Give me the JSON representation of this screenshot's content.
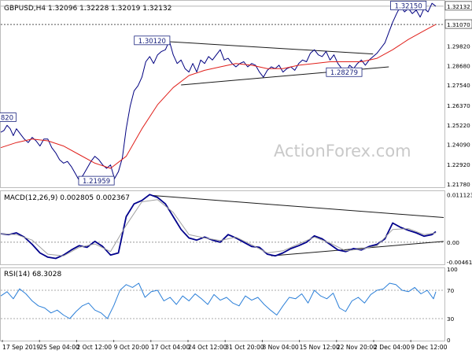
{
  "panels": {
    "price": {
      "header": "GBPUSD,H4  1.32096 1.32228 1.32019 1.32132",
      "last_price": "1.32132",
      "ref_level": "1.31070",
      "watermark": "ActionForex.com"
    },
    "macd": {
      "header": "MACD(12,26,9) 0.002805 0.002367"
    },
    "rsi": {
      "header": "RSI(14) 68.3028"
    }
  },
  "x_axis_labels": [
    "17 Sep 2019",
    "25 Sep 04:00",
    "2 Oct 12:00",
    "9 Oct 20:00",
    "17 Oct 04:00",
    "24 Oct 12:00",
    "31 Oct 20:00",
    "8 Nov 04:00",
    "15 Nov 12:00",
    "22 Nov 20:00",
    "2 Dec 04:00",
    "9 Dec 12:00"
  ],
  "chart_data": [
    {
      "type": "line",
      "title": "GBPUSD,H4",
      "ylim": [
        1.216,
        1.324
      ],
      "y_ticks": [
        "1.32132",
        "1.31070",
        "1.29820",
        "1.28680",
        "1.27540",
        "1.26370",
        "1.25220",
        "1.24090",
        "1.22920",
        "1.21780"
      ],
      "x_labels": [
        "17 Sep 2019",
        "25 Sep 04:00",
        "2 Oct 12:00",
        "9 Oct 20:00",
        "17 Oct 04:00",
        "24 Oct 12:00",
        "31 Oct 20:00",
        "8 Nov 04:00",
        "15 Nov 12:00",
        "22 Nov 20:00",
        "2 Dec 04:00",
        "9 Dec 12:00"
      ],
      "series": [
        {
          "color": "#000080",
          "x": [
            0,
            4,
            8,
            12,
            16,
            20,
            25,
            30,
            35,
            40,
            45,
            50,
            55,
            60,
            65,
            70,
            75,
            80,
            85,
            90,
            95,
            100,
            105,
            110,
            115,
            120,
            125,
            130,
            135,
            140,
            145,
            150,
            155,
            160,
            165,
            170,
            175,
            180,
            185,
            190,
            195,
            200,
            205,
            210,
            215,
            220,
            225,
            230,
            235,
            240,
            245,
            250,
            255,
            260,
            265,
            270,
            275,
            280,
            285,
            290,
            295,
            300,
            305,
            310,
            315,
            320,
            325,
            330,
            335,
            340,
            345,
            350,
            355,
            360,
            365,
            370,
            375,
            380,
            385,
            390,
            395,
            400,
            405,
            410,
            415,
            420,
            425,
            430,
            435,
            440,
            445,
            450,
            455,
            460,
            465,
            470,
            475,
            480,
            485,
            490,
            495,
            500,
            505,
            510,
            515,
            520,
            525,
            530,
            535,
            540,
            545,
            550,
            555
          ],
          "values": [
            1.248,
            1.249,
            1.252,
            1.25,
            1.246,
            1.25,
            1.247,
            1.244,
            1.242,
            1.245,
            1.243,
            1.24,
            1.244,
            1.244,
            1.239,
            1.236,
            1.232,
            1.23,
            1.231,
            1.228,
            1.224,
            1.22,
            1.223,
            1.227,
            1.231,
            1.234,
            1.232,
            1.229,
            1.227,
            1.229,
            1.221,
            1.225,
            1.233,
            1.25,
            1.263,
            1.272,
            1.275,
            1.28,
            1.289,
            1.292,
            1.288,
            1.293,
            1.295,
            1.296,
            1.3012,
            1.293,
            1.288,
            1.29,
            1.285,
            1.283,
            1.288,
            1.283,
            1.29,
            1.288,
            1.292,
            1.29,
            1.293,
            1.296,
            1.29,
            1.291,
            1.288,
            1.286,
            1.288,
            1.289,
            1.286,
            1.288,
            1.287,
            1.283,
            1.28,
            1.284,
            1.286,
            1.285,
            1.287,
            1.283,
            1.285,
            1.286,
            1.284,
            1.288,
            1.29,
            1.289,
            1.294,
            1.296,
            1.293,
            1.292,
            1.295,
            1.29,
            1.293,
            1.288,
            1.285,
            1.2827,
            1.287,
            1.285,
            1.288,
            1.29,
            1.287,
            1.29,
            1.292,
            1.294,
            1.297,
            1.3,
            1.306,
            1.312,
            1.317,
            1.3215,
            1.318,
            1.32,
            1.317,
            1.319,
            1.315,
            1.32,
            1.318,
            1.323,
            1.3213
          ]
        },
        {
          "color": "#e0201b",
          "x": [
            0,
            20,
            40,
            60,
            80,
            100,
            120,
            140,
            160,
            180,
            200,
            220,
            240,
            260,
            280,
            300,
            320,
            340,
            360,
            380,
            400,
            420,
            440,
            460,
            480,
            500,
            520,
            540,
            555
          ],
          "values": [
            1.239,
            1.242,
            1.244,
            1.243,
            1.24,
            1.235,
            1.23,
            1.227,
            1.234,
            1.25,
            1.264,
            1.274,
            1.281,
            1.284,
            1.286,
            1.288,
            1.287,
            1.285,
            1.285,
            1.287,
            1.288,
            1.289,
            1.289,
            1.289,
            1.291,
            1.296,
            1.302,
            1.307,
            1.3107
          ]
        }
      ],
      "annotations": [
        {
          "text": "1.32150",
          "x": 520,
          "y": 1.3215
        },
        {
          "text": "1.30120",
          "x": 193,
          "y": 1.3012
        },
        {
          "text": "1.28279",
          "x": 438,
          "y": 1.2827
        },
        {
          "text": "1.21959",
          "x": 122,
          "y": 1.2196
        },
        {
          "text": "820",
          "x": 8,
          "y": 1.2565
        }
      ],
      "trendlines": [
        {
          "x": [
            195,
            475
          ],
          "y": [
            1.3012,
            1.2935
          ]
        },
        {
          "x": [
            230,
            495
          ],
          "y": [
            1.2755,
            1.286
          ]
        }
      ],
      "grid": false
    },
    {
      "type": "line",
      "title": "MACD(12,26,9)",
      "ylim": [
        -0.005,
        0.0118
      ],
      "y_ticks": [
        "0.011123",
        "0.00",
        "-0.004617"
      ],
      "series": [
        {
          "color": "#00008b",
          "x": [
            0,
            10,
            20,
            30,
            40,
            50,
            60,
            70,
            80,
            90,
            100,
            110,
            120,
            130,
            140,
            150,
            160,
            170,
            180,
            190,
            200,
            210,
            220,
            230,
            240,
            250,
            260,
            270,
            280,
            290,
            300,
            310,
            320,
            330,
            340,
            350,
            360,
            370,
            380,
            390,
            400,
            410,
            420,
            430,
            440,
            450,
            460,
            470,
            480,
            490,
            500,
            510,
            520,
            530,
            540,
            550,
            555
          ],
          "values": [
            0.002,
            0.0018,
            0.0022,
            0.0012,
            -0.0005,
            -0.0025,
            -0.0035,
            -0.0038,
            -0.003,
            -0.0018,
            -0.0008,
            -0.0012,
            0.0002,
            -0.001,
            -0.003,
            -0.0025,
            0.006,
            0.009,
            0.0098,
            0.0112,
            0.0105,
            0.009,
            0.006,
            0.003,
            0.001,
            0.0005,
            0.0012,
            0.0005,
            0.0,
            0.0018,
            0.001,
            0.0,
            -0.001,
            -0.0012,
            -0.0028,
            -0.0032,
            -0.0025,
            -0.0015,
            -0.0008,
            0.0,
            0.0015,
            0.0008,
            -0.0005,
            -0.0018,
            -0.0022,
            -0.0015,
            -0.0018,
            -0.001,
            -0.0005,
            0.0008,
            0.0045,
            0.0035,
            0.0028,
            0.0022,
            0.0014,
            0.0018,
            0.0025
          ]
        },
        {
          "color": "#a0a0a0",
          "x": [
            0,
            20,
            40,
            60,
            80,
            100,
            120,
            140,
            160,
            180,
            200,
            220,
            240,
            260,
            280,
            300,
            320,
            340,
            360,
            380,
            400,
            420,
            440,
            460,
            480,
            500,
            520,
            540,
            555
          ],
          "values": [
            0.002,
            0.0018,
            0.0005,
            -0.0028,
            -0.0032,
            -0.0012,
            -0.0004,
            -0.0022,
            0.004,
            0.0095,
            0.01,
            0.007,
            0.0018,
            0.001,
            0.0004,
            0.0012,
            -0.0006,
            -0.0025,
            -0.002,
            -0.0004,
            0.0012,
            -0.0002,
            -0.002,
            -0.0016,
            -0.0008,
            0.003,
            0.0032,
            0.0018,
            0.0022
          ]
        }
      ],
      "trendlines": [
        {
          "x": [
            192,
            565
          ],
          "y": [
            0.011,
            0.0058
          ]
        },
        {
          "x": [
            345,
            565
          ],
          "y": [
            -0.0032,
            0.0002
          ]
        }
      ],
      "zero_line": true,
      "grid": false
    },
    {
      "type": "line",
      "title": "RSI(14)",
      "ylim": [
        0,
        100
      ],
      "y_ticks": [
        "100",
        "70",
        "30",
        "0"
      ],
      "series": [
        {
          "color": "#2b7fd8",
          "x": [
            0,
            8,
            16,
            24,
            32,
            40,
            48,
            56,
            64,
            72,
            80,
            88,
            96,
            104,
            112,
            120,
            128,
            136,
            144,
            152,
            160,
            168,
            176,
            184,
            192,
            200,
            208,
            216,
            224,
            232,
            240,
            248,
            256,
            264,
            272,
            280,
            288,
            296,
            304,
            312,
            320,
            328,
            336,
            344,
            352,
            360,
            368,
            376,
            384,
            392,
            400,
            408,
            416,
            424,
            432,
            440,
            448,
            456,
            464,
            472,
            480,
            488,
            496,
            504,
            512,
            520,
            528,
            536,
            544,
            552,
            555
          ],
          "values": [
            62,
            68,
            58,
            72,
            65,
            55,
            48,
            45,
            38,
            42,
            35,
            30,
            40,
            48,
            52,
            42,
            38,
            30,
            48,
            70,
            78,
            74,
            80,
            60,
            68,
            70,
            55,
            60,
            50,
            62,
            55,
            65,
            58,
            50,
            64,
            56,
            60,
            52,
            48,
            62,
            56,
            60,
            50,
            42,
            35,
            48,
            60,
            58,
            65,
            52,
            70,
            62,
            58,
            66,
            45,
            40,
            55,
            60,
            52,
            64,
            70,
            72,
            80,
            78,
            70,
            68,
            74,
            65,
            70,
            58,
            68
          ]
        }
      ],
      "grid": false
    }
  ]
}
